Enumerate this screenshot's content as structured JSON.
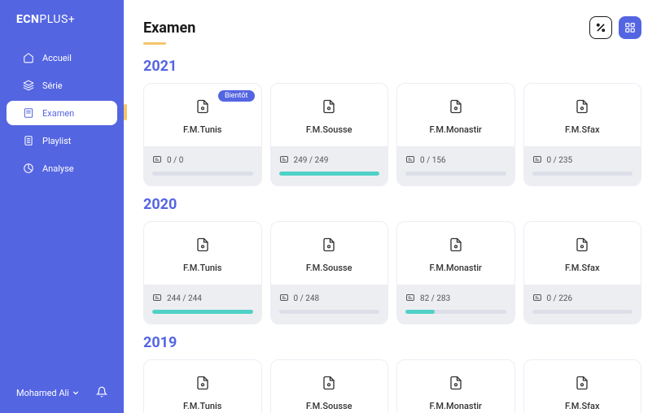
{
  "logo": {
    "bold": "ECN",
    "light": "PLUS+"
  },
  "nav": [
    {
      "key": "accueil",
      "label": "Accueil",
      "icon": "home",
      "active": false
    },
    {
      "key": "serie",
      "label": "Série",
      "icon": "layers",
      "active": false
    },
    {
      "key": "examen",
      "label": "Examen",
      "icon": "exam",
      "active": true
    },
    {
      "key": "playlist",
      "label": "Playlist",
      "icon": "list",
      "active": false
    },
    {
      "key": "analyse",
      "label": "Analyse",
      "icon": "chart",
      "active": false
    }
  ],
  "user": {
    "name": "Mohamed Ali"
  },
  "page": {
    "title": "Examen"
  },
  "header_icons": {
    "percent": "%",
    "grid": "grid"
  },
  "years": [
    {
      "year": "2021",
      "cards": [
        {
          "name": "F.M.Tunis",
          "done": 0,
          "total": 0,
          "badge": "Bientôt"
        },
        {
          "name": "F.M.Sousse",
          "done": 249,
          "total": 249
        },
        {
          "name": "F.M.Monastir",
          "done": 0,
          "total": 156
        },
        {
          "name": "F.M.Sfax",
          "done": 0,
          "total": 235
        }
      ]
    },
    {
      "year": "2020",
      "cards": [
        {
          "name": "F.M.Tunis",
          "done": 244,
          "total": 244
        },
        {
          "name": "F.M.Sousse",
          "done": 0,
          "total": 248
        },
        {
          "name": "F.M.Monastir",
          "done": 82,
          "total": 283
        },
        {
          "name": "F.M.Sfax",
          "done": 0,
          "total": 226
        }
      ]
    },
    {
      "year": "2019",
      "cards": [
        {
          "name": "F.M.Tunis"
        },
        {
          "name": "F.M.Sousse"
        },
        {
          "name": "F.M.Monastir"
        },
        {
          "name": "F.M.Sfax"
        }
      ]
    }
  ],
  "colors": {
    "sidebar": "#5465e2",
    "accent_yellow": "#f5c56b",
    "progress": "#4fd1c7",
    "card_bottom": "#edeef2",
    "progress_bg": "#dcdfe8",
    "text_primary": "#1a1a1a"
  }
}
